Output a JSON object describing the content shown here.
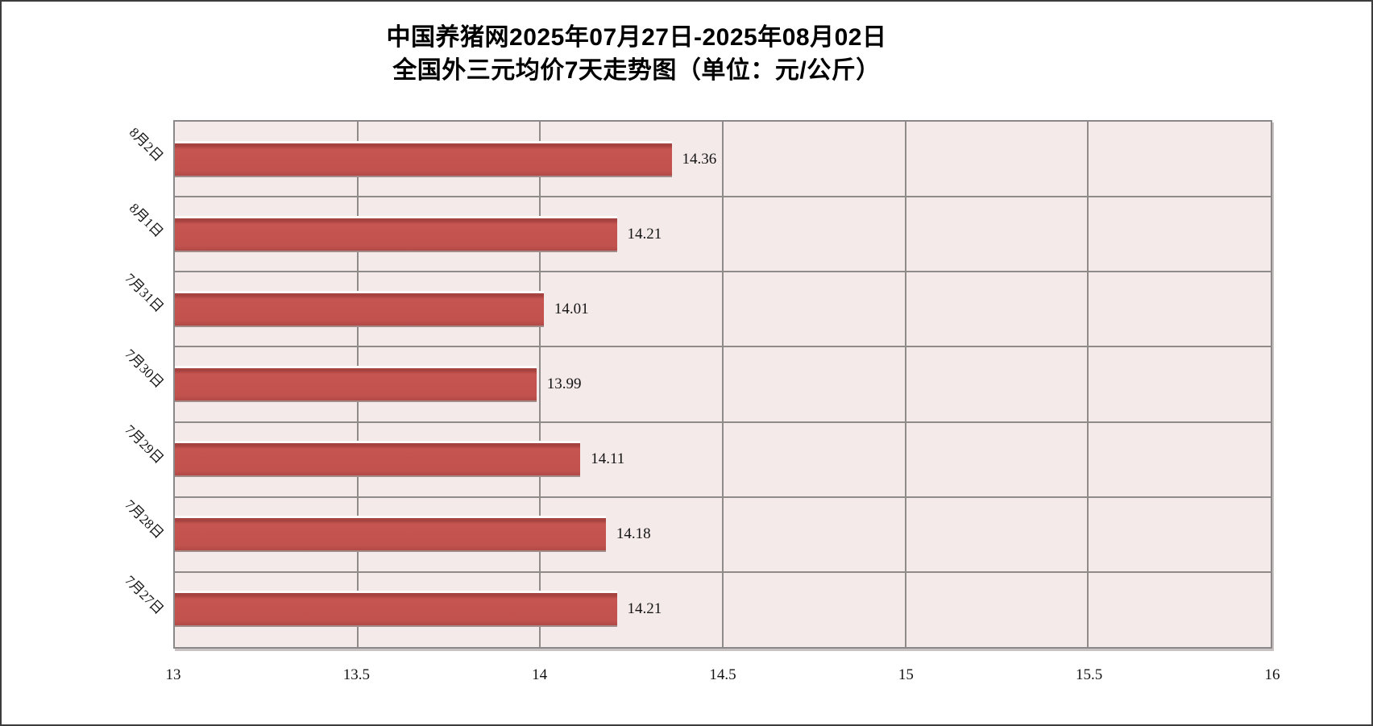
{
  "title": {
    "line1": "中国养猪网2025年07月27日-2025年08月02日",
    "line2": "全国外三元均价7天走势图（单位：元/公斤）"
  },
  "chart_data": {
    "type": "bar",
    "orientation": "horizontal",
    "title": "中国养猪网2025年07月27日-2025年08月02日 全国外三元均价7天走势图（单位：元/公斤）",
    "unit": "元/公斤",
    "categories": [
      "8月2日",
      "8月1日",
      "7月31日",
      "7月30日",
      "7月29日",
      "7月28日",
      "7月27日"
    ],
    "values": [
      14.36,
      14.21,
      14.01,
      13.99,
      14.11,
      14.18,
      14.21
    ],
    "value_labels": [
      "14.36",
      "14.21",
      "14.01",
      "13.99",
      "14.11",
      "14.18",
      "14.21"
    ],
    "xlim": [
      13,
      16
    ],
    "xticks": [
      13,
      13.5,
      14,
      14.5,
      15,
      15.5,
      16
    ],
    "xtick_labels": [
      "13",
      "13.5",
      "14",
      "14.5",
      "15",
      "15.5",
      "16"
    ],
    "grid": true,
    "legend": "none",
    "colors": {
      "bar_fill": "#c2524e",
      "bar_border_top": "#a64340",
      "plot_background": "#f5eaea",
      "gridline": "#8f8b8b",
      "plot_border": "#8a8888",
      "figure_border": "#3c3c3c",
      "text": "#141414"
    }
  }
}
